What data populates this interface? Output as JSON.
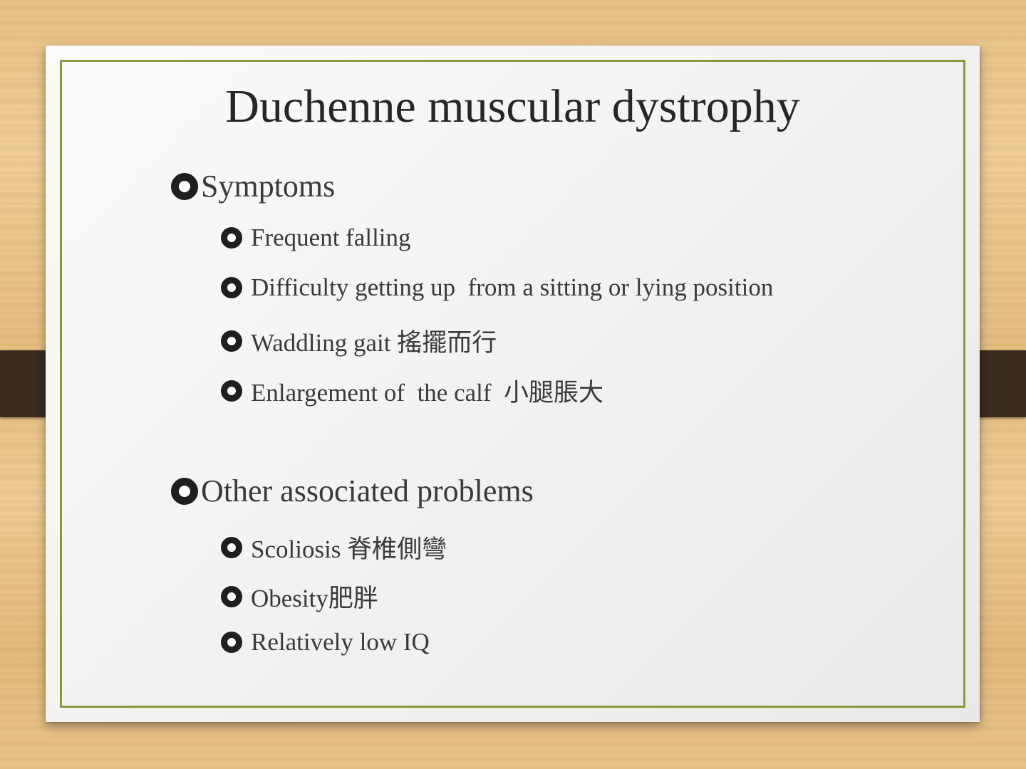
{
  "slide": {
    "title": "Duchenne muscular dystrophy",
    "sections": [
      {
        "label": "Symptoms",
        "items": [
          "Frequent falling",
          "Difficulty getting up  from a sitting or lying position",
          "Waddling gait 搖擺而行",
          "Enlargement of  the calf  小腿脹大"
        ]
      },
      {
        "label": "Other associated problems",
        "items": [
          "Scoliosis 脊椎側彎",
          "Obesity肥胖",
          "Relatively low IQ"
        ]
      }
    ]
  },
  "colors": {
    "frame_border": "#8a9a3a",
    "strap": "#3a2a1f",
    "background_wood": "#e9c489"
  },
  "icons": {
    "bullet": "ring-bullet-icon"
  }
}
